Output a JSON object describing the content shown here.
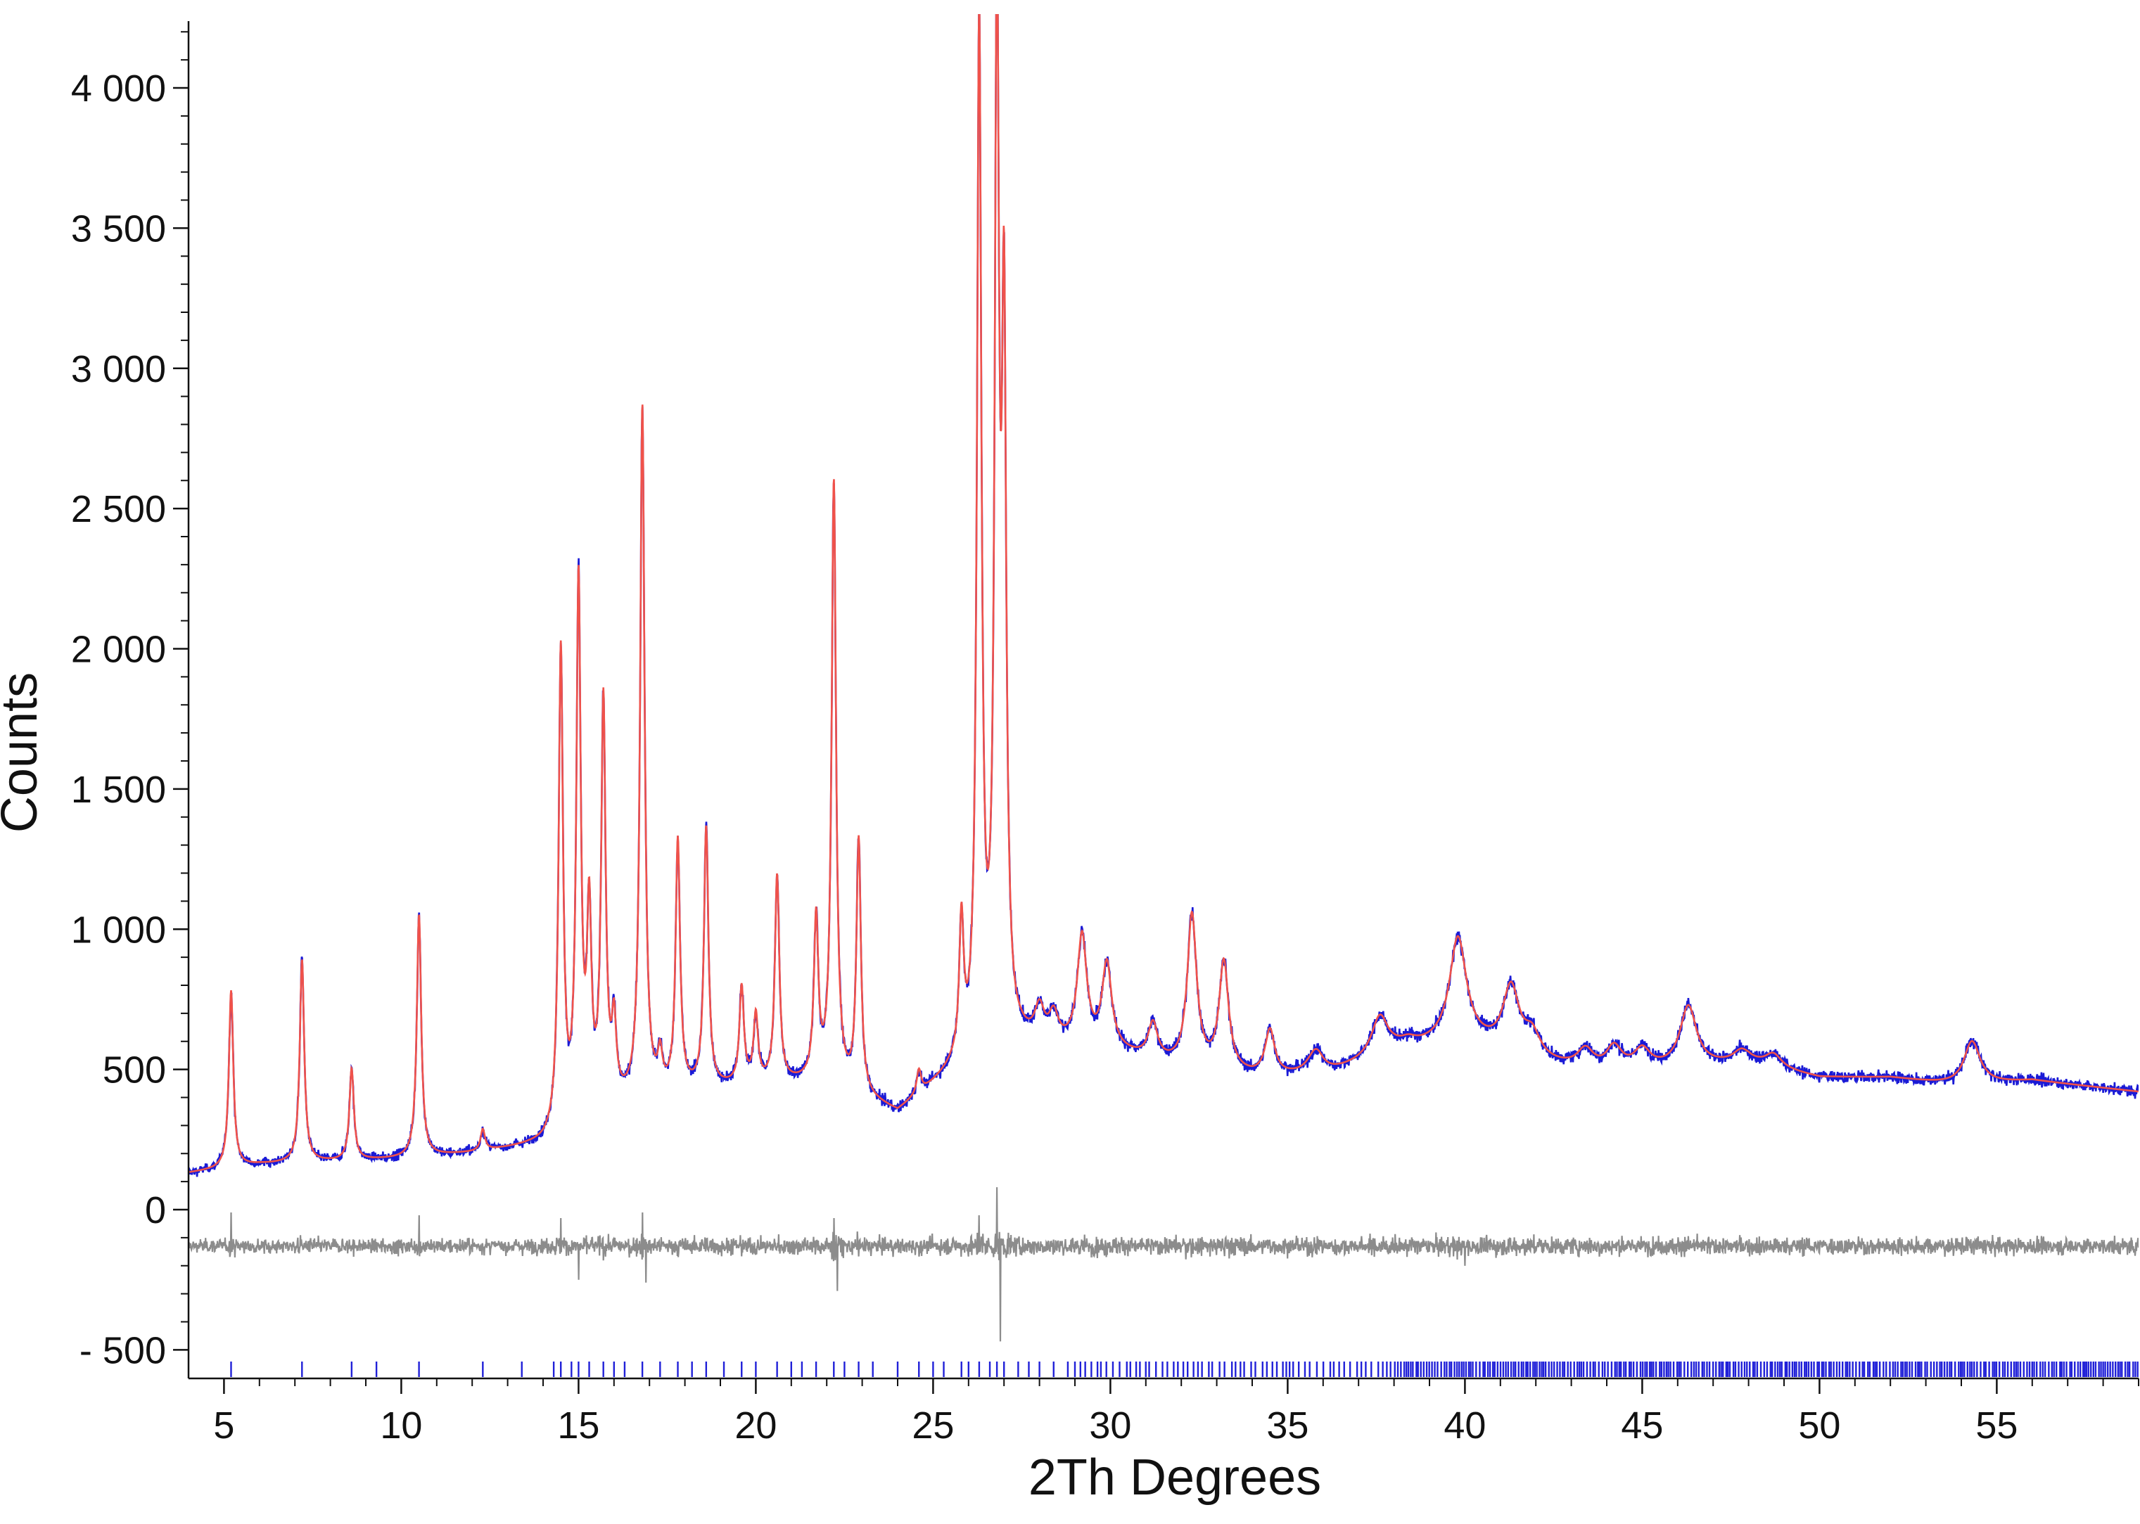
{
  "chart_data": {
    "type": "line",
    "xlabel": "2Th Degrees",
    "ylabel": "Counts",
    "xlim": [
      4,
      59
    ],
    "ylim": [
      -600,
      4200
    ],
    "x_ticks": [
      5,
      10,
      15,
      20,
      25,
      30,
      35,
      40,
      45,
      50,
      55
    ],
    "x_tick_labels": [
      "5",
      "10",
      "15",
      "20",
      "25",
      "30",
      "35",
      "40",
      "45",
      "50",
      "55"
    ],
    "y_ticks": [
      -500,
      0,
      500,
      1000,
      1500,
      2000,
      2500,
      3000,
      3500,
      4000
    ],
    "y_tick_labels": [
      "- 500",
      "0",
      "500",
      "1 000",
      "1 500",
      "2 000",
      "2 500",
      "3 000",
      "3 500",
      "4 000"
    ],
    "grid": false,
    "legend": "none",
    "colors": {
      "observed": "#1a1ad6",
      "calculated": "#f0524a",
      "difference": "#8c8c8c",
      "reflection_ticks": "#2020d8"
    },
    "baseline_points": [
      [
        4.0,
        130
      ],
      [
        6.0,
        160
      ],
      [
        8.0,
        170
      ],
      [
        10.0,
        180
      ],
      [
        12.0,
        200
      ],
      [
        14.0,
        230
      ],
      [
        16.0,
        360
      ],
      [
        18.0,
        420
      ],
      [
        20.0,
        440
      ],
      [
        22.0,
        450
      ],
      [
        24.0,
        340
      ],
      [
        25.5,
        480
      ],
      [
        27.5,
        580
      ],
      [
        30.0,
        560
      ],
      [
        32.0,
        500
      ],
      [
        34.0,
        470
      ],
      [
        36.0,
        470
      ],
      [
        38.0,
        560
      ],
      [
        40.0,
        600
      ],
      [
        42.0,
        520
      ],
      [
        44.0,
        480
      ],
      [
        46.0,
        500
      ],
      [
        48.0,
        520
      ],
      [
        50.0,
        470
      ],
      [
        52.0,
        470
      ],
      [
        54.0,
        440
      ],
      [
        56.0,
        460
      ],
      [
        59.0,
        420
      ]
    ],
    "peaks": [
      {
        "x": 5.2,
        "y": 780
      },
      {
        "x": 7.2,
        "y": 890
      },
      {
        "x": 8.6,
        "y": 500
      },
      {
        "x": 10.5,
        "y": 1050
      },
      {
        "x": 12.3,
        "y": 280
      },
      {
        "x": 14.5,
        "y": 1970
      },
      {
        "x": 15.0,
        "y": 2200
      },
      {
        "x": 15.3,
        "y": 1000
      },
      {
        "x": 15.7,
        "y": 1780
      },
      {
        "x": 16.0,
        "y": 620
      },
      {
        "x": 16.8,
        "y": 2850
      },
      {
        "x": 17.3,
        "y": 520
      },
      {
        "x": 17.8,
        "y": 1300
      },
      {
        "x": 18.6,
        "y": 1350
      },
      {
        "x": 19.6,
        "y": 780
      },
      {
        "x": 20.0,
        "y": 680
      },
      {
        "x": 20.6,
        "y": 1180
      },
      {
        "x": 21.7,
        "y": 1020
      },
      {
        "x": 22.2,
        "y": 2580
      },
      {
        "x": 22.9,
        "y": 1300
      },
      {
        "x": 24.6,
        "y": 480
      },
      {
        "x": 25.8,
        "y": 980
      },
      {
        "x": 26.3,
        "y": 4200
      },
      {
        "x": 26.8,
        "y": 4180
      },
      {
        "x": 27.0,
        "y": 3000
      },
      {
        "x": 28.0,
        "y": 690
      },
      {
        "x": 28.4,
        "y": 670
      },
      {
        "x": 29.2,
        "y": 960
      },
      {
        "x": 29.9,
        "y": 860
      },
      {
        "x": 31.2,
        "y": 650
      },
      {
        "x": 32.3,
        "y": 1040
      },
      {
        "x": 33.2,
        "y": 870
      },
      {
        "x": 34.5,
        "y": 630
      },
      {
        "x": 35.8,
        "y": 560
      },
      {
        "x": 37.6,
        "y": 680
      },
      {
        "x": 38.4,
        "y": 590
      },
      {
        "x": 39.8,
        "y": 960
      },
      {
        "x": 41.3,
        "y": 780
      },
      {
        "x": 41.9,
        "y": 610
      },
      {
        "x": 43.4,
        "y": 560
      },
      {
        "x": 44.2,
        "y": 570
      },
      {
        "x": 45.0,
        "y": 560
      },
      {
        "x": 46.3,
        "y": 720
      },
      {
        "x": 47.8,
        "y": 560
      },
      {
        "x": 48.7,
        "y": 550
      },
      {
        "x": 54.3,
        "y": 600
      }
    ],
    "difference": {
      "offset": -130,
      "spikes": [
        {
          "x": 5.2,
          "y": -10
        },
        {
          "x": 10.5,
          "y": -20
        },
        {
          "x": 14.5,
          "y": -30
        },
        {
          "x": 15.0,
          "y": -250
        },
        {
          "x": 16.8,
          "y": -10
        },
        {
          "x": 16.9,
          "y": -260
        },
        {
          "x": 22.2,
          "y": -30
        },
        {
          "x": 22.3,
          "y": -290
        },
        {
          "x": 26.3,
          "y": -20
        },
        {
          "x": 26.8,
          "y": 80
        },
        {
          "x": 26.9,
          "y": -470
        },
        {
          "x": 40.0,
          "y": -200
        }
      ]
    },
    "reflection_ticks": [
      5.2,
      7.2,
      8.6,
      9.3,
      10.5,
      12.3,
      13.4,
      14.3,
      14.5,
      14.8,
      15.0,
      15.3,
      15.7,
      16.0,
      16.3,
      16.8,
      17.3,
      17.8,
      18.2,
      18.6,
      19.1,
      19.6,
      20.0,
      20.6,
      21.0,
      21.3,
      21.7,
      22.2,
      22.5,
      22.9,
      23.3,
      24.0,
      24.6,
      25.0,
      25.3,
      25.8,
      26.0,
      26.3,
      26.6,
      26.8,
      27.0,
      27.4,
      27.7,
      28.0,
      28.4,
      28.8
    ],
    "reflection_tick_density_start": 29.0
  }
}
